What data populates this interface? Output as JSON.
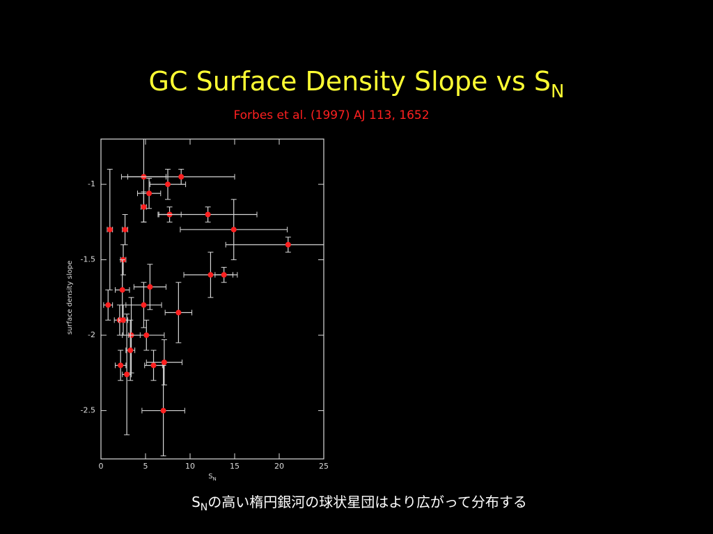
{
  "chart_data": {
    "type": "scatter",
    "title": {
      "main": "GC Surface Density Slope vs S",
      "sub": "N"
    },
    "subtitle": "Forbes et al. (1997) AJ 113, 1652",
    "x_label": {
      "main": "S",
      "sub": "N"
    },
    "y_label": "surface density slope",
    "caption": {
      "main": "S",
      "sub": "N",
      "rest": "の高い楕円銀河の球状星団はより広がって分布する"
    },
    "color": "#ff2020",
    "error_color": "#d8d8d8",
    "x": [
      4.8,
      7.5,
      9.0,
      5.4,
      4.8,
      7.7,
      12.0,
      1.0,
      2.7,
      14.9,
      21.0,
      2.5,
      12.3,
      13.8,
      2.4,
      5.5,
      0.8,
      4.8,
      8.7,
      2.1,
      2.5,
      3.4,
      5.1,
      3.3,
      2.2,
      5.9,
      7.1,
      2.9,
      7.0
    ],
    "y": [
      -0.95,
      -1.0,
      -0.95,
      -1.06,
      -1.15,
      -1.2,
      -1.2,
      -1.3,
      -1.3,
      -1.3,
      -1.4,
      -1.5,
      -1.6,
      -1.6,
      -1.7,
      -1.68,
      -1.8,
      -1.8,
      -1.85,
      -1.9,
      -1.9,
      -2.0,
      -2.0,
      -2.1,
      -2.2,
      -2.2,
      -2.18,
      -2.26,
      -2.5
    ],
    "xerr": [
      2.5,
      2.0,
      6.0,
      1.3,
      0.3,
      1.3,
      5.5,
      0.3,
      0.3,
      6.0,
      7.0,
      0.3,
      3.0,
      1.0,
      0.8,
      1.8,
      0.5,
      2.0,
      1.5,
      0.6,
      0.5,
      1.0,
      2.0,
      0.5,
      0.6,
      1.0,
      2.0,
      0.5,
      2.4
    ],
    "yerr": [
      0.3,
      0.1,
      0.05,
      0.1,
      0.1,
      0.05,
      0.05,
      0.4,
      0.1,
      0.2,
      0.05,
      0.1,
      0.15,
      0.05,
      0.2,
      0.15,
      0.1,
      0.15,
      0.2,
      0.1,
      0.1,
      0.25,
      0.1,
      0.2,
      0.1,
      0.1,
      0.15,
      0.4,
      0.3
    ],
    "xlim": [
      0,
      25
    ],
    "ylim": [
      -2.82,
      -0.7
    ],
    "xticks": [
      0,
      5,
      10,
      15,
      20,
      25
    ],
    "yticks": [
      -1,
      -1.5,
      -2,
      -2.5
    ]
  }
}
